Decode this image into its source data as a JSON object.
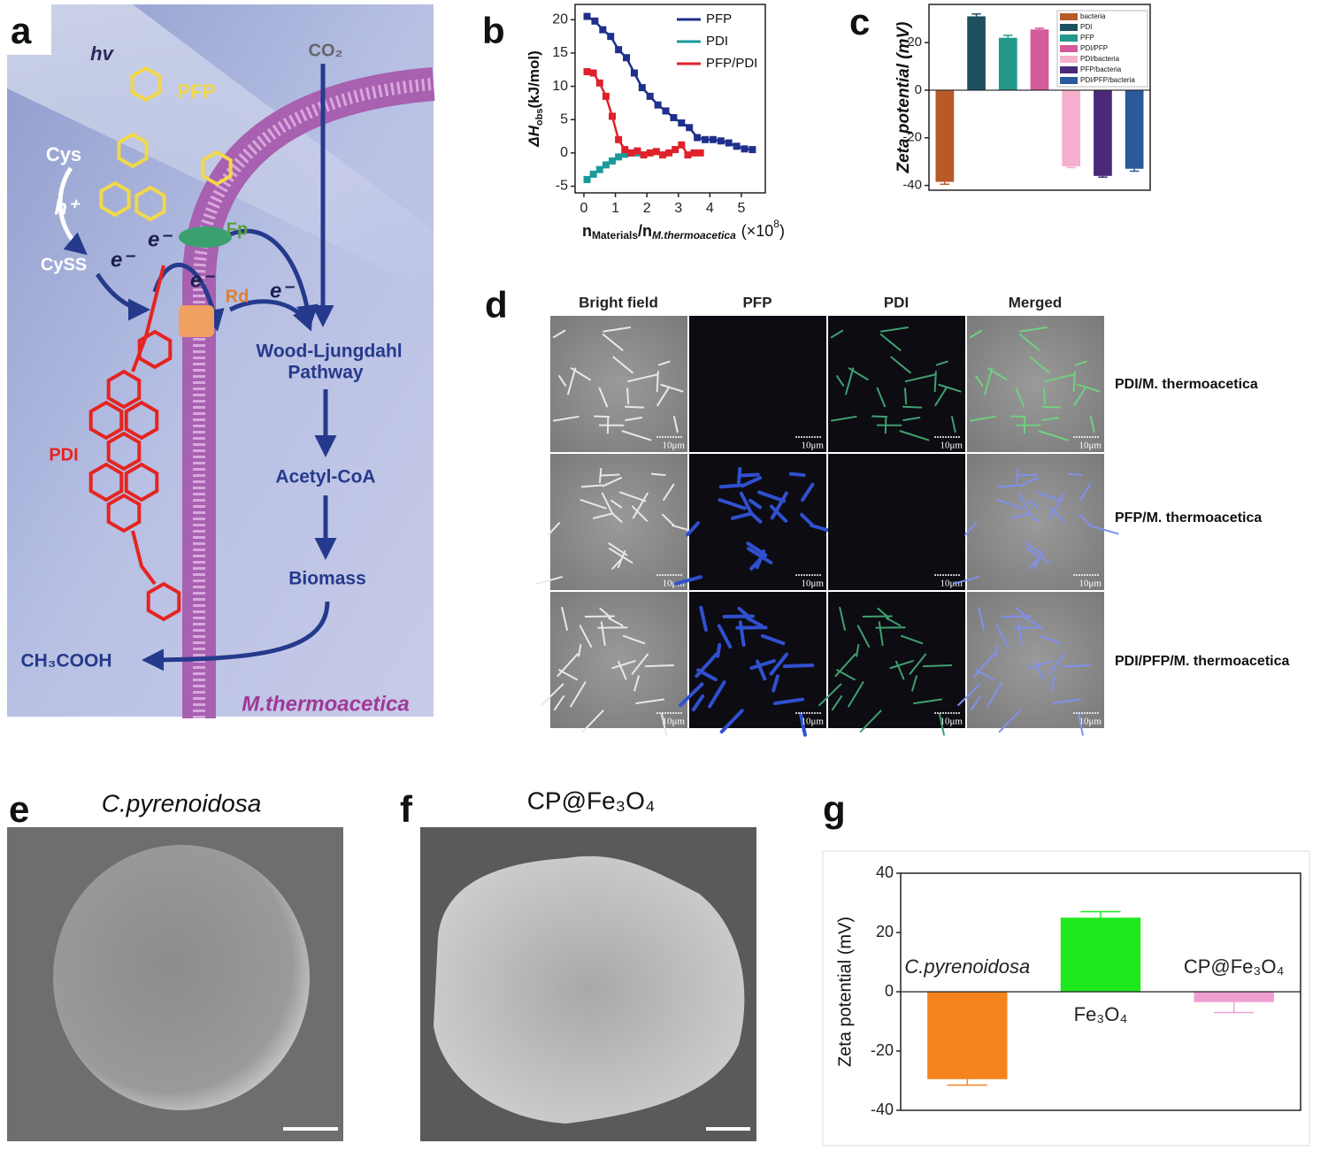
{
  "panel_labels": [
    "a",
    "b",
    "c",
    "d",
    "e",
    "f",
    "g"
  ],
  "diagram": {
    "labels": [
      "hv",
      "PFP",
      "CO₂",
      "Cys",
      "h⁺",
      "CySS",
      "e⁻",
      "e⁻",
      "e⁻",
      "e⁻",
      "Fp",
      "Rd",
      "Wood-Ljungdahl",
      "Pathway",
      "Acetyl-CoA",
      "Biomass",
      "PDI",
      "CH₃COOH",
      "M.thermoacetica"
    ]
  },
  "microscopy": {
    "columns": [
      "Bright field",
      "PFP",
      "PDI",
      "Merged"
    ],
    "rows": [
      "PDI/M. thermoacetica",
      "PFP/M. thermoacetica",
      "PDI/PFP/M. thermoacetica"
    ],
    "scale_bar": "10μm"
  },
  "sem": {
    "titles": [
      "C.pyrenoidosa",
      "CP@Fe₃O₄"
    ]
  },
  "chart_data": [
    {
      "type": "line",
      "ylabel": [
        "ΔH",
        "obs",
        "(kJ/mol)"
      ],
      "xlabel": [
        "n",
        "Materials",
        "/n",
        "M.thermoacetica",
        "(×10",
        "8",
        ")"
      ],
      "xlim": [
        -0.28,
        5.76
      ],
      "xticks": [
        0,
        1,
        2,
        3,
        4,
        5
      ],
      "ylim": [
        -6,
        22.3
      ],
      "yticks": [
        -5,
        0,
        5,
        10,
        15,
        20
      ],
      "legend": "upper right",
      "series": [
        {
          "name": "PFP",
          "color": "#1f2f8c",
          "x": [
            0.1,
            0.35,
            0.6,
            0.85,
            1.1,
            1.35,
            1.6,
            1.85,
            2.1,
            2.35,
            2.6,
            2.85,
            3.1,
            3.35,
            3.6,
            3.85,
            4.1,
            4.35,
            4.6,
            4.85,
            5.1,
            5.35
          ],
          "values": [
            20.5,
            19.8,
            18.5,
            17.5,
            15.5,
            14.3,
            12,
            9.8,
            8.5,
            7.2,
            6.3,
            5.3,
            4.5,
            3.8,
            2.3,
            2,
            2,
            1.8,
            1.5,
            1,
            0.6,
            0.5
          ]
        },
        {
          "name": "PDI",
          "color": "#1a9a9a",
          "x": [
            0.1,
            0.3,
            0.5,
            0.7,
            0.9,
            1.1,
            1.3,
            1.5,
            1.7
          ],
          "values": [
            -4,
            -3.2,
            -2.5,
            -1.8,
            -1.2,
            -0.6,
            -0.2,
            0,
            0
          ]
        },
        {
          "name": "PFP/PDI",
          "color": "#e0202a",
          "x": [
            0.1,
            0.3,
            0.5,
            0.7,
            0.9,
            1.1,
            1.3,
            1.5,
            1.7,
            1.9,
            2.1,
            2.3,
            2.5,
            2.7,
            2.9,
            3.1,
            3.3,
            3.5,
            3.7
          ],
          "values": [
            12.2,
            12,
            10.5,
            8.5,
            5.5,
            2,
            0.5,
            0,
            0.3,
            -0.3,
            0,
            0.2,
            -0.3,
            0,
            0.5,
            1.2,
            -0.3,
            0,
            0
          ]
        }
      ]
    },
    {
      "type": "bar",
      "ylabel": "Zeta potential (mV)",
      "ylim": [
        -42,
        36
      ],
      "yticks": [
        -40,
        -20,
        0,
        20
      ],
      "legend": "upper right",
      "series": [
        {
          "name": "bacteria",
          "color": "#b85a28",
          "values": [
            -38.5
          ],
          "errors": [
            1
          ]
        },
        {
          "name": "PDI",
          "color": "#1e4f5e",
          "values": [
            31
          ],
          "errors": [
            1
          ]
        },
        {
          "name": "PFP",
          "color": "#22998a",
          "values": [
            22
          ],
          "errors": [
            1
          ]
        },
        {
          "name": "PDI/PFP",
          "color": "#d45a9a",
          "values": [
            25.5
          ],
          "errors": [
            0.5
          ]
        },
        {
          "name": "PDI/bacteria",
          "color": "#f4b0cc",
          "values": [
            -32
          ],
          "errors": [
            0.5
          ]
        },
        {
          "name": "PFP/bacteria",
          "color": "#4a2a78",
          "values": [
            -36
          ],
          "errors": [
            0.5
          ]
        },
        {
          "name": "PDI/PFP/bacteria",
          "color": "#2a5a9a",
          "values": [
            -33
          ],
          "errors": [
            1
          ]
        }
      ]
    },
    {
      "type": "bar",
      "ylabel": "Zeta potential (mV)",
      "ylim": [
        -40,
        40
      ],
      "yticks": [
        -40,
        -20,
        0,
        20,
        40
      ],
      "categories": [
        "C.pyrenoidosa",
        "Fe₃O₄",
        "CP@Fe₃O₄"
      ],
      "series": [
        {
          "color": [
            "#f5841f",
            "#1ee81e",
            "#f0a0d0"
          ],
          "values": [
            -29.5,
            25,
            -3.5
          ],
          "errors": [
            2,
            2,
            3.5
          ]
        }
      ]
    }
  ]
}
